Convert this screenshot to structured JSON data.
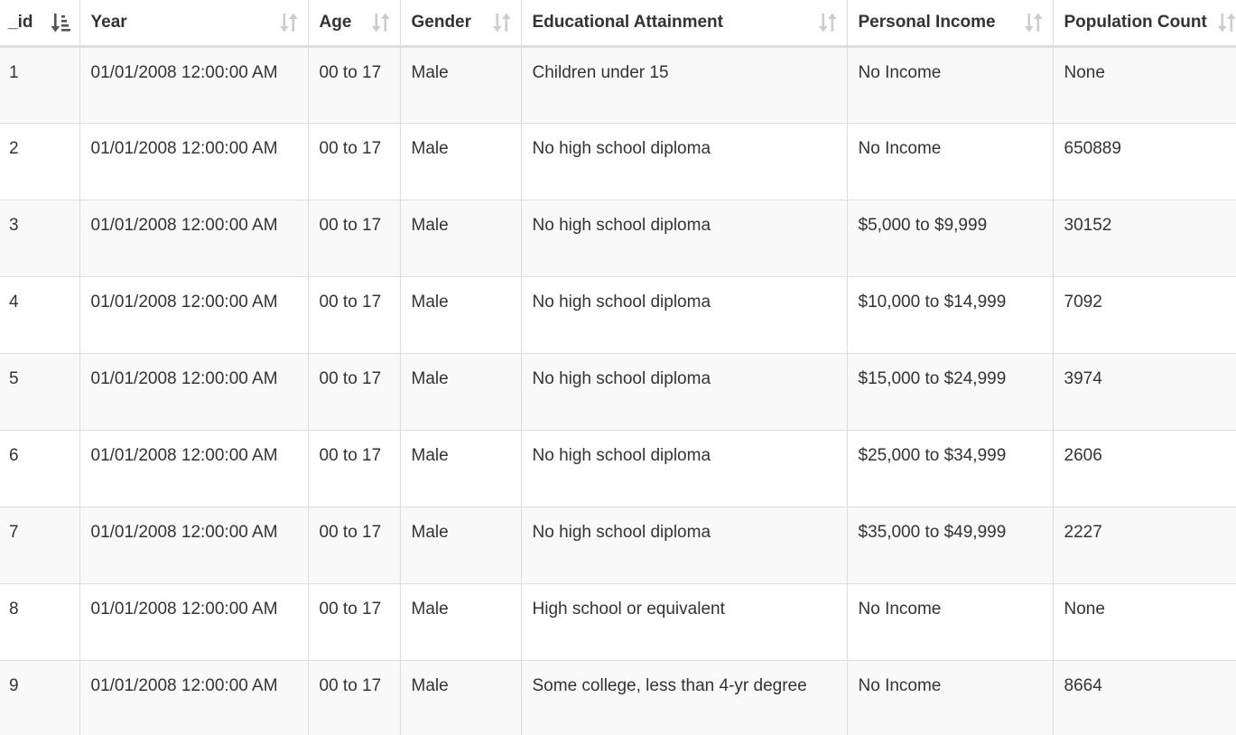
{
  "table": {
    "columns": [
      {
        "label": "_id",
        "sort": "sorted-asc",
        "icon": "sort-amount-asc-icon"
      },
      {
        "label": "Year",
        "sort": "unsorted",
        "icon": "sort-icon"
      },
      {
        "label": "Age",
        "sort": "unsorted",
        "icon": "sort-icon"
      },
      {
        "label": "Gender",
        "sort": "unsorted",
        "icon": "sort-icon"
      },
      {
        "label": "Educational Attainment",
        "sort": "unsorted",
        "icon": "sort-icon"
      },
      {
        "label": "Personal Income",
        "sort": "unsorted",
        "icon": "sort-icon"
      },
      {
        "label": "Population Count",
        "sort": "unsorted",
        "icon": "sort-icon"
      }
    ],
    "rows": [
      [
        "1",
        "01/01/2008 12:00:00 AM",
        "00 to 17",
        "Male",
        "Children under 15",
        "No Income",
        "None"
      ],
      [
        "2",
        "01/01/2008 12:00:00 AM",
        "00 to 17",
        "Male",
        "No high school diploma",
        "No Income",
        "650889"
      ],
      [
        "3",
        "01/01/2008 12:00:00 AM",
        "00 to 17",
        "Male",
        "No high school diploma",
        "$5,000 to $9,999",
        "30152"
      ],
      [
        "4",
        "01/01/2008 12:00:00 AM",
        "00 to 17",
        "Male",
        "No high school diploma",
        "$10,000 to $14,999",
        "7092"
      ],
      [
        "5",
        "01/01/2008 12:00:00 AM",
        "00 to 17",
        "Male",
        "No high school diploma",
        "$15,000 to $24,999",
        "3974"
      ],
      [
        "6",
        "01/01/2008 12:00:00 AM",
        "00 to 17",
        "Male",
        "No high school diploma",
        "$25,000 to $34,999",
        "2606"
      ],
      [
        "7",
        "01/01/2008 12:00:00 AM",
        "00 to 17",
        "Male",
        "No high school diploma",
        "$35,000 to $49,999",
        "2227"
      ],
      [
        "8",
        "01/01/2008 12:00:00 AM",
        "00 to 17",
        "Male",
        "High school or equivalent",
        "No Income",
        "None"
      ],
      [
        "9",
        "01/01/2008 12:00:00 AM",
        "00 to 17",
        "Male",
        "Some college, less than 4-yr degree",
        "No Income",
        "8664"
      ]
    ]
  },
  "colors": {
    "text": "#333333",
    "border": "#dddddd",
    "stripe": "#f9f9f9",
    "icon_active": "#555555",
    "icon_inactive": "#cccccc"
  }
}
